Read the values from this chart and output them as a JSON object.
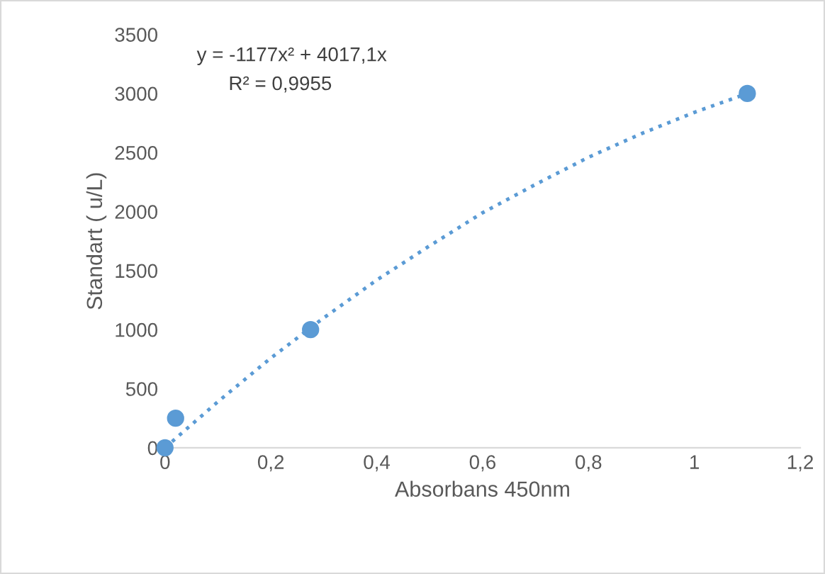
{
  "chart_data": {
    "type": "scatter",
    "xlabel": "Absorbans 450nm",
    "ylabel": "Standart ( u/L)",
    "annotations": [
      "y = -1177x² + 4017,1x",
      "R² = 0,9955"
    ],
    "series": [
      {
        "color": "#5b9bd5",
        "marker": "circle",
        "x": [
          0,
          0.02,
          0.275,
          1.1
        ],
        "values": [
          0,
          250,
          1000,
          3000
        ]
      },
      {
        "type": "line",
        "color": "#5b9bd5",
        "marker": "none",
        "line_style": "dotted",
        "x": [
          0,
          0.1,
          0.2,
          0.3,
          0.4,
          0.5,
          0.6,
          0.7,
          0.8,
          0.9,
          1.0,
          1.1
        ],
        "values": [
          0,
          390,
          760,
          1100,
          1420,
          1710,
          1990,
          2230,
          2460,
          2660,
          2840,
          3000
        ]
      }
    ],
    "xlim": [
      0,
      1.2
    ],
    "ylim": [
      0,
      3500
    ],
    "xticks": [
      0,
      {
        "value": 0.2,
        "label": "0,2"
      },
      {
        "value": 0.4,
        "label": "0,4"
      },
      {
        "value": 0.6,
        "label": "0,6"
      },
      {
        "value": 0.8,
        "label": "0,8"
      },
      1,
      {
        "value": 1.2,
        "label": "1,2"
      }
    ],
    "yticks": [
      0,
      500,
      1000,
      1500,
      2000,
      2500,
      3000,
      3500
    ],
    "grid": false,
    "legend": false
  }
}
